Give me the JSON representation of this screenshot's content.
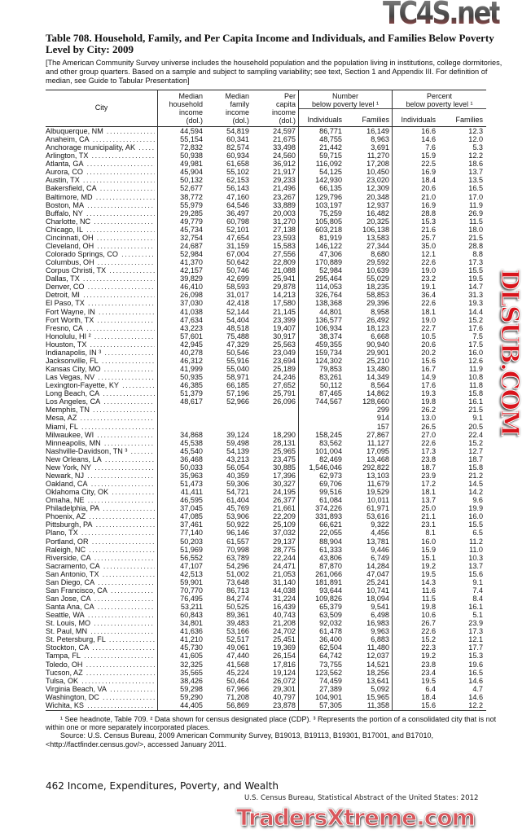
{
  "title": "Table 708. Household, Family, and Per Capita Income and Individuals, and Families Below Poverty Level by City: 2009",
  "headnote": "[The American Community Survey universe includes the household population and the population living in institutions, college dormitories, and other group quarters. Based on a sample and subject to sampling variability; see text, Section 1 and Appendix III. For definition of median, see Guide to Tabular Presentation]",
  "header": {
    "city": "City",
    "household": [
      "Median",
      "household",
      "income",
      "(dol.)"
    ],
    "family": [
      "Median",
      "family",
      "income",
      "(dol.)"
    ],
    "percapita": [
      "Per",
      "capita",
      "income",
      "(dol.)"
    ],
    "number_group": [
      "Number",
      "below poverty level ¹"
    ],
    "percent_group": [
      "Percent",
      "below poverty level ¹"
    ],
    "individuals": "Individuals",
    "families": "Families"
  },
  "rows": [
    [
      "Albuquerque, NM",
      "44,594",
      "54,819",
      "24,597",
      "86,771",
      "16,149",
      "16.6",
      "12.3"
    ],
    [
      "Anaheim, CA",
      "55,154",
      "60,341",
      "21,675",
      "48,755",
      "8,963",
      "14.6",
      "12.0"
    ],
    [
      "Anchorage municipality, AK",
      "72,832",
      "82,574",
      "33,498",
      "21,442",
      "3,691",
      "7.6",
      "5.3"
    ],
    [
      "Arlington, TX",
      "50,938",
      "60,934",
      "24,560",
      "59,715",
      "11,270",
      "15.9",
      "12.2"
    ],
    [
      "Atlanta, GA",
      "49,981",
      "61,658",
      "36,912",
      "116,092",
      "17,208",
      "22.5",
      "18.6"
    ],
    [
      "Aurora, CO",
      "45,904",
      "55,102",
      "21,917",
      "54,125",
      "10,450",
      "16.9",
      "13.7"
    ],
    [
      "Austin, TX",
      "50,132",
      "62,153",
      "29,233",
      "142,930",
      "23,020",
      "18.4",
      "13.5"
    ],
    [
      "Bakersfield, CA",
      "52,677",
      "56,143",
      "21,496",
      "66,135",
      "12,309",
      "20.6",
      "16.5"
    ],
    [
      "Baltimore, MD",
      "38,772",
      "47,160",
      "23,267",
      "129,796",
      "20,348",
      "21.0",
      "17.0"
    ],
    [
      "Boston, MA",
      "55,979",
      "64,546",
      "33,889",
      "103,197",
      "12,937",
      "16.9",
      "11.9"
    ],
    [
      "Buffalo, NY",
      "29,285",
      "36,497",
      "20,003",
      "75,259",
      "16,482",
      "28.8",
      "26.9"
    ],
    [
      "Charlotte, NC",
      "49,779",
      "60,798",
      "31,270",
      "105,805",
      "20,325",
      "15.3",
      "11.5"
    ],
    [
      "Chicago, IL",
      "45,734",
      "52,101",
      "27,138",
      "603,218",
      "106,138",
      "21.6",
      "18.0"
    ],
    [
      "Cincinnati, OH",
      "32,754",
      "47,654",
      "23,593",
      "81,919",
      "13,583",
      "25.7",
      "21.5"
    ],
    [
      "Cleveland, OH",
      "24,687",
      "31,159",
      "15,583",
      "146,122",
      "27,344",
      "35.0",
      "28.8"
    ],
    [
      "Colorado Springs, CO",
      "52,984",
      "67,004",
      "27,556",
      "47,306",
      "8,680",
      "12.1",
      "8.8"
    ],
    [
      "Columbus, OH",
      "41,370",
      "50,642",
      "22,809",
      "170,889",
      "29,592",
      "22.6",
      "17.3"
    ],
    [
      "Corpus Christi, TX",
      "42,157",
      "50,746",
      "21,088",
      "52,984",
      "10,639",
      "19.0",
      "15.5"
    ],
    [
      "Dallas, TX",
      "39,829",
      "42,699",
      "25,941",
      "295,464",
      "55,029",
      "23.2",
      "19.5"
    ],
    [
      "Denver, CO",
      "46,410",
      "58,593",
      "29,878",
      "114,053",
      "18,235",
      "19.1",
      "14.7"
    ],
    [
      "Detroit, MI",
      "26,098",
      "31,017",
      "14,213",
      "326,764",
      "58,853",
      "36.4",
      "31.3"
    ],
    [
      "El Paso, TX",
      "37,030",
      "42,418",
      "17,580",
      "138,368",
      "29,396",
      "22.6",
      "19.3"
    ],
    [
      "Fort Wayne, IN",
      "41,038",
      "52,144",
      "21,145",
      "44,801",
      "8,958",
      "18.1",
      "14.4"
    ],
    [
      "Fort Worth, TX",
      "47,634",
      "54,404",
      "23,399",
      "136,577",
      "26,492",
      "19.0",
      "15.2"
    ],
    [
      "Fresno, CA",
      "43,223",
      "48,518",
      "19,407",
      "106,934",
      "18,123",
      "22.7",
      "17.6"
    ],
    [
      "Honolulu, HI ²",
      "57,601",
      "75,488",
      "30,917",
      "38,374",
      "6,668",
      "10.5",
      "7.5"
    ],
    [
      "Houston, TX",
      "42,945",
      "47,329",
      "25,563",
      "459,355",
      "90,940",
      "20.6",
      "17.5"
    ],
    [
      "Indianapolis, IN ³",
      "40,278",
      "50,546",
      "23,049",
      "159,734",
      "29,901",
      "20.2",
      "16.0"
    ],
    [
      "Jacksonville, FL",
      "46,312",
      "55,916",
      "23,694",
      "124,302",
      "25,210",
      "15.6",
      "12.6"
    ],
    [
      "Kansas City, MO",
      "41,999",
      "55,040",
      "25,189",
      "79,853",
      "13,480",
      "16.7",
      "11.9"
    ],
    [
      "Las Vegas, NV",
      "50,935",
      "58,971",
      "24,246",
      "83,261",
      "14,349",
      "14.9",
      "10.8"
    ],
    [
      "Lexington-Fayette, KY",
      "46,385",
      "66,185",
      "27,652",
      "50,112",
      "8,564",
      "17.6",
      "11.8"
    ],
    [
      "Long Beach, CA",
      "51,379",
      "57,196",
      "25,791",
      "87,465",
      "14,862",
      "19.3",
      "15.8"
    ],
    [
      "Los Angeles, CA",
      "48,617",
      "52,966",
      "26,096",
      "744,567",
      "128,660",
      "19.8",
      "16.1"
    ],
    [
      "Memphis, TN",
      "",
      "",
      "",
      "",
      "299",
      "26.2",
      "21.5"
    ],
    [
      "Mesa, AZ",
      "",
      "",
      "",
      "",
      "914",
      "13.0",
      "9.1"
    ],
    [
      "Miami, FL",
      "",
      "",
      "",
      "",
      "157",
      "26.5",
      "20.5"
    ],
    [
      "Milwaukee, WI",
      "34,868",
      "39,124",
      "18,290",
      "158,245",
      "27,867",
      "27.0",
      "22.4"
    ],
    [
      "Minneapolis, MN",
      "45,538",
      "59,498",
      "28,131",
      "83,562",
      "11,127",
      "22.6",
      "15.2"
    ],
    [
      "Nashville-Davidson, TN ³",
      "45,540",
      "54,139",
      "25,965",
      "101,004",
      "17,095",
      "17.3",
      "12.7"
    ],
    [
      "New Orleans, LA",
      "36,468",
      "43,213",
      "23,475",
      "82,469",
      "13,468",
      "23.8",
      "18.7"
    ],
    [
      "New York, NY",
      "50,033",
      "56,054",
      "30,885",
      "1,546,046",
      "292,822",
      "18.7",
      "15.8"
    ],
    [
      "Newark, NJ",
      "35,963",
      "40,359",
      "17,396",
      "62,973",
      "13,103",
      "23.9",
      "21.2"
    ],
    [
      "Oakland, CA",
      "51,473",
      "59,306",
      "30,327",
      "69,706",
      "11,679",
      "17.2",
      "14.5"
    ],
    [
      "Oklahoma City, OK",
      "41,411",
      "54,721",
      "24,195",
      "99,516",
      "19,529",
      "18.1",
      "14.2"
    ],
    [
      "Omaha, NE",
      "46,595",
      "61,404",
      "26,377",
      "61,084",
      "10,011",
      "13.7",
      "9.6"
    ],
    [
      "Philadelphia, PA",
      "37,045",
      "45,769",
      "21,661",
      "374,226",
      "61,971",
      "25.0",
      "19.9"
    ],
    [
      "Phoenix, AZ",
      "47,085",
      "53,906",
      "22,209",
      "331,893",
      "53,616",
      "21.1",
      "16.0"
    ],
    [
      "Pittsburgh, PA",
      "37,461",
      "50,922",
      "25,109",
      "66,621",
      "9,322",
      "23.1",
      "15.5"
    ],
    [
      "Plano, TX",
      "77,140",
      "96,146",
      "37,032",
      "22,055",
      "4,456",
      "8.1",
      "6.5"
    ],
    [
      "Portland, OR",
      "50,203",
      "61,557",
      "29,137",
      "88,904",
      "13,781",
      "16.0",
      "11.2"
    ],
    [
      "Raleigh, NC",
      "51,969",
      "70,998",
      "28,775",
      "61,333",
      "9,446",
      "15.9",
      "11.0"
    ],
    [
      "Riverside, CA",
      "56,552",
      "63,789",
      "22,244",
      "43,806",
      "6,749",
      "15.1",
      "10.3"
    ],
    [
      "Sacramento, CA",
      "47,107",
      "54,296",
      "24,471",
      "87,870",
      "14,284",
      "19.2",
      "13.7"
    ],
    [
      "San Antonio, TX",
      "42,513",
      "51,002",
      "21,053",
      "261,066",
      "47,047",
      "19.5",
      "15.6"
    ],
    [
      "San Diego, CA",
      "59,901",
      "73,648",
      "31,140",
      "181,891",
      "25,241",
      "14.3",
      "9.1"
    ],
    [
      "San Francisco, CA",
      "70,770",
      "86,713",
      "44,038",
      "93,644",
      "10,741",
      "11.6",
      "7.4"
    ],
    [
      "San Jose, CA",
      "76,495",
      "84,274",
      "31,224",
      "109,826",
      "18,094",
      "11.5",
      "8.4"
    ],
    [
      "Santa Ana, CA",
      "53,211",
      "50,525",
      "16,439",
      "65,379",
      "9,541",
      "19.8",
      "16.1"
    ],
    [
      "Seattle, WA",
      "60,843",
      "89,361",
      "40,743",
      "63,509",
      "6,498",
      "10.6",
      "5.1"
    ],
    [
      "St. Louis, MO",
      "34,801",
      "39,483",
      "21,208",
      "92,032",
      "16,983",
      "26.7",
      "23.9"
    ],
    [
      "St. Paul, MN",
      "41,636",
      "53,166",
      "24,702",
      "61,478",
      "9,963",
      "22.6",
      "17.3"
    ],
    [
      "St. Petersburg, FL",
      "41,210",
      "52,517",
      "25,451",
      "36,400",
      "6,883",
      "15.2",
      "12.1"
    ],
    [
      "Stockton, CA",
      "45,730",
      "49,061",
      "19,369",
      "62,504",
      "11,480",
      "22.3",
      "17.7"
    ],
    [
      "Tampa, FL",
      "41,605",
      "47,440",
      "26,154",
      "64,742",
      "12,037",
      "19.2",
      "15.3"
    ],
    [
      "Toledo, OH",
      "32,325",
      "41,568",
      "17,816",
      "73,755",
      "14,521",
      "23.8",
      "19.6"
    ],
    [
      "Tucson, AZ",
      "35,565",
      "45,224",
      "19,124",
      "123,562",
      "18,256",
      "23.4",
      "16.5"
    ],
    [
      "Tulsa, OK",
      "38,426",
      "50,464",
      "26,072",
      "74,459",
      "13,641",
      "19.5",
      "14.6"
    ],
    [
      "Virginia Beach, VA",
      "59,298",
      "67,966",
      "29,301",
      "27,389",
      "5,092",
      "6.4",
      "4.7"
    ],
    [
      "Washington, DC",
      "59,290",
      "71,208",
      "40,797",
      "104,901",
      "15,965",
      "18.4",
      "14.6"
    ],
    [
      "Wichita, KS",
      "44,405",
      "56,869",
      "23,878",
      "57,305",
      "11,358",
      "15.6",
      "12.2"
    ]
  ],
  "footnotes": {
    "notes": "¹ See headnote, Table 709. ² Data shown for census designated place (CDP). ³ Represents the portion of a consolidated city that is not within one or more separately incorporated places.",
    "source": "Source: U.S. Census Bureau, 2009 American Community Survey, B19013, B19113, B19301, B17001, and B17010, <http://factfinder.census.gov/>, accessed January 2011."
  },
  "page_footer": {
    "left": "462  Income, Expenditures, Poverty, and Wealth",
    "right": "U.S. Census Bureau, Statistical Abstract of the United States: 2012"
  },
  "watermarks": [
    "TC4S.net",
    "DLSUB.COM",
    "TradersXtreme.com"
  ]
}
